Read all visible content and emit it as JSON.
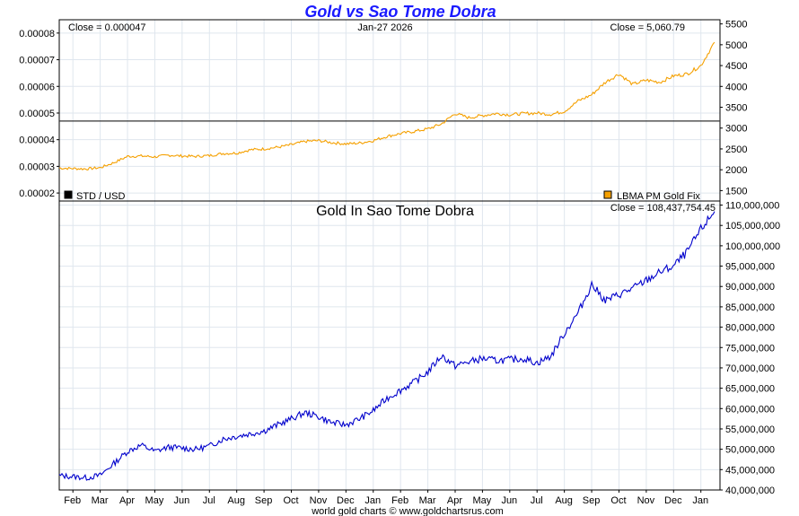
{
  "colors": {
    "gold": "#f5a000",
    "blue": "#0000cc",
    "grid": "#dfe6ee",
    "title": "#1a1aff",
    "hline": "#333333"
  },
  "chart_data": [
    {
      "type": "line",
      "title": "Gold vs Sao Tome Dobra",
      "close_left_label": "Close = 0.000047",
      "date_label": "Jan-27  2026",
      "close_right_label": "Close = 5,060.79",
      "legend": [
        {
          "name": "STD / USD",
          "color": "#000000"
        },
        {
          "name": "LBMA PM Gold Fix",
          "color": "#f5a000"
        }
      ],
      "y_left": {
        "ylim": [
          1.7e-05,
          8.5e-05
        ],
        "ticks": [
          2e-05,
          3e-05,
          4e-05,
          5e-05,
          6e-05,
          7e-05,
          8e-05
        ],
        "tick_labels": [
          "0.00002",
          "0.00003",
          "0.00004",
          "0.00005",
          "0.00006",
          "0.00007",
          "0.00008"
        ]
      },
      "y_right": {
        "ylim": [
          1250,
          5600
        ],
        "ticks": [
          1500,
          2000,
          2500,
          3000,
          3500,
          4000,
          4500,
          5000,
          5500
        ],
        "tick_labels": [
          "1500",
          "2000",
          "2500",
          "3000",
          "3500",
          "4000",
          "4500",
          "5000",
          "5500"
        ]
      },
      "std_usd_value": 4.7e-05,
      "series": [
        {
          "name": "LBMA PM Gold Fix",
          "x": [
            0,
            0.5,
            1,
            1.5,
            2,
            2.5,
            3,
            3.5,
            4,
            4.5,
            5,
            5.5,
            6,
            6.5,
            7,
            7.5,
            8,
            8.5,
            9,
            9.5,
            10,
            10.5,
            11,
            11.5,
            12,
            12.5,
            13,
            13.5,
            14,
            14.5,
            15,
            15.5,
            16,
            16.5,
            17,
            17.5,
            18,
            18.5,
            19,
            19.5,
            20,
            20.5,
            21,
            21.5,
            22,
            22.5,
            23,
            23.5,
            24
          ],
          "values": [
            2040,
            2030,
            2020,
            2050,
            2170,
            2320,
            2330,
            2310,
            2350,
            2330,
            2320,
            2340,
            2390,
            2400,
            2480,
            2500,
            2540,
            2600,
            2680,
            2700,
            2650,
            2620,
            2640,
            2700,
            2800,
            2870,
            2920,
            2980,
            3100,
            3350,
            3250,
            3300,
            3350,
            3320,
            3350,
            3360,
            3330,
            3400,
            3650,
            3800,
            4100,
            4300,
            4050,
            4150,
            4100,
            4250,
            4300,
            4500,
            5060
          ]
        }
      ]
    },
    {
      "type": "line",
      "title": "Gold In Sao Tome Dobra",
      "close_label": "Close = 108,437,754.45",
      "credit": "world gold charts © www.goldchartsrus.com",
      "ylim": [
        40000000,
        111000000
      ],
      "ticks": [
        40000000,
        45000000,
        50000000,
        55000000,
        60000000,
        65000000,
        70000000,
        75000000,
        80000000,
        85000000,
        90000000,
        95000000,
        100000000,
        105000000,
        110000000
      ],
      "tick_labels": [
        "40,000,000",
        "45,000,000",
        "50,000,000",
        "55,000,000",
        "60,000,000",
        "65,000,000",
        "70,000,000",
        "75,000,000",
        "80,000,000",
        "85,000,000",
        "90,000,000",
        "95,000,000",
        "100,000,000",
        "105,000,000",
        "110,000,000"
      ],
      "xlim": [
        0,
        24.2
      ],
      "month_labels": [
        "Feb",
        "Mar",
        "Apr",
        "May",
        "Jun",
        "Jul",
        "Aug",
        "Sep",
        "Oct",
        "Nov",
        "Dec",
        "Jan",
        "Feb",
        "Mar",
        "Apr",
        "May",
        "Jun",
        "Jul",
        "Aug",
        "Sep",
        "Oct",
        "Nov",
        "Dec",
        "Jan"
      ],
      "series": [
        {
          "name": "Gold In Sao Tome Dobra",
          "x": [
            0,
            0.5,
            1,
            1.5,
            2,
            2.5,
            3,
            3.5,
            4,
            4.5,
            5,
            5.5,
            6,
            6.5,
            7,
            7.5,
            8,
            8.5,
            9,
            9.5,
            10,
            10.5,
            11,
            11.5,
            12,
            12.5,
            13,
            13.5,
            14,
            14.5,
            15,
            15.5,
            16,
            16.5,
            17,
            17.5,
            18,
            18.5,
            19,
            19.5,
            20,
            20.5,
            21,
            21.5,
            22,
            22.5,
            23,
            23.5,
            24
          ],
          "values": [
            43500000,
            43300000,
            43000000,
            43600000,
            46500000,
            49500000,
            51000000,
            49500000,
            50500000,
            50300000,
            50000000,
            50800000,
            52500000,
            53200000,
            53800000,
            54500000,
            56000000,
            57500000,
            59000000,
            58000000,
            56500000,
            56000000,
            57500000,
            59500000,
            62500000,
            64500000,
            66500000,
            69000000,
            73000000,
            70500000,
            71500000,
            72300000,
            71800000,
            72000000,
            72300000,
            71200000,
            72800000,
            78500000,
            83500000,
            90500000,
            86500000,
            88000000,
            89500000,
            91500000,
            93500000,
            95000000,
            98500000,
            104000000,
            108437754.45
          ]
        }
      ]
    }
  ]
}
